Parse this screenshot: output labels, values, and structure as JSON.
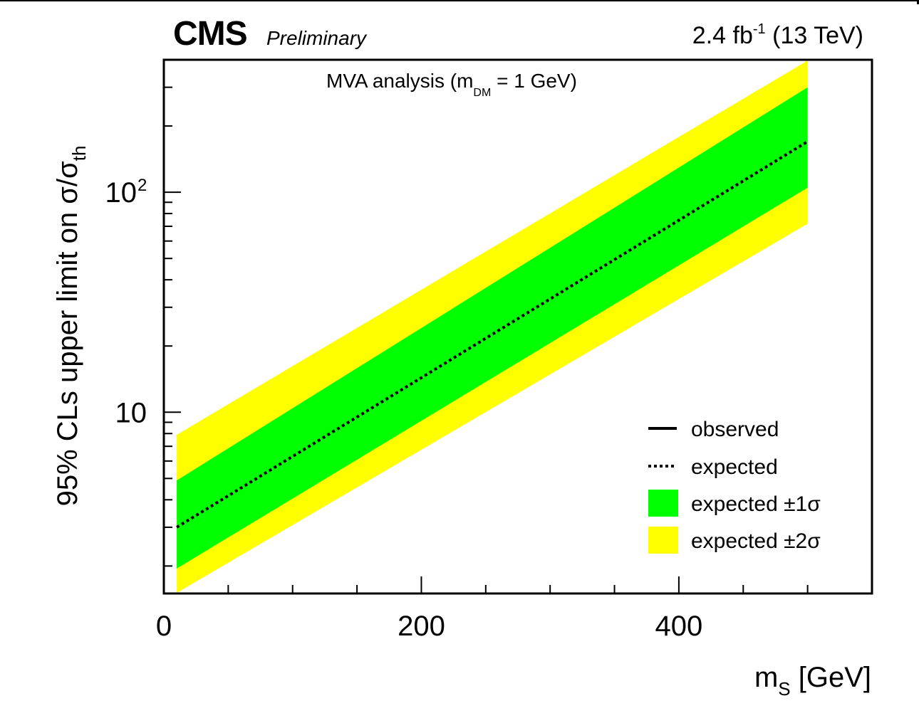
{
  "header": {
    "experiment": "CMS",
    "status": "Preliminary",
    "lumi_value": "2.4 fb",
    "lumi_exp": "-1",
    "energy": " (13 TeV)"
  },
  "annotation": {
    "text": "MVA analysis (m",
    "sub": "DM",
    "tail": " = 1 GeV)"
  },
  "axes": {
    "xlabel_main": "m",
    "xlabel_sub": "S",
    "xlabel_unit": " [GeV]",
    "ylabel_main": "95% CLs upper limit on σ/σ",
    "ylabel_sub": "th"
  },
  "legend": {
    "observed": "observed",
    "expected": "expected",
    "one_sigma": "expected ±1σ",
    "two_sigma": "expected ±2σ"
  },
  "colors": {
    "one_sigma_band": "#00ff00",
    "two_sigma_band": "#ffff00",
    "expected_line": "#000000",
    "frame": "#000000"
  },
  "chart_data": {
    "type": "line",
    "x": [
      10,
      500
    ],
    "xlim": [
      0,
      550
    ],
    "ylim": [
      1.5,
      400
    ],
    "yscale": "log",
    "x_ticks": [
      0,
      200,
      400
    ],
    "x_ticklabels": [
      "0",
      "200",
      "400"
    ],
    "y_ticklabels": [
      {
        "value": 10,
        "label": "10",
        "exp": ""
      },
      {
        "value": 100,
        "label": "10",
        "exp": "2"
      }
    ],
    "series": [
      {
        "name": "expected",
        "style": "dotted",
        "y": [
          3.0,
          170
        ]
      },
      {
        "name": "expected ±1σ",
        "style": "band",
        "lower": [
          1.95,
          105
        ],
        "upper": [
          4.9,
          300
        ]
      },
      {
        "name": "expected ±2σ",
        "style": "band",
        "lower": [
          1.35,
          72
        ],
        "upper": [
          7.9,
          520
        ]
      }
    ],
    "legend_position": "bottom-right",
    "grid": false
  }
}
